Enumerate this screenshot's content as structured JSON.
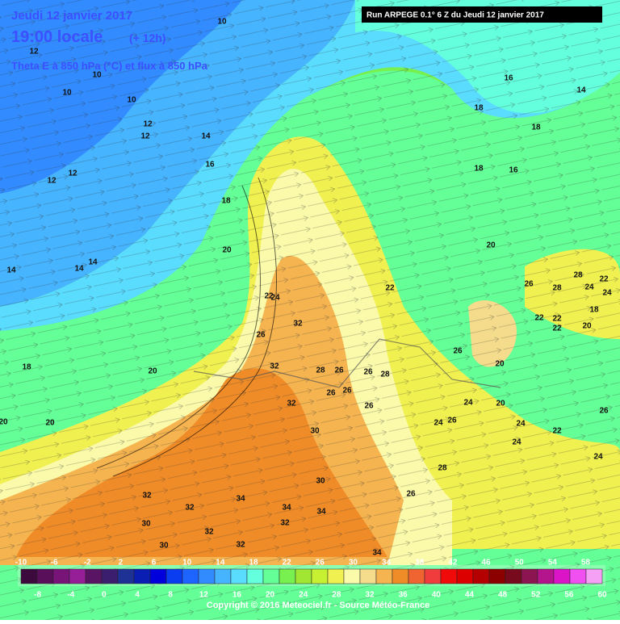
{
  "header": {
    "date": "Jeudi 12 janvier 2017",
    "time": "19:00 locale",
    "offset": "(+ 12h)",
    "field": "Theta E à 850 hPa (°C) et flux à 850 hPa"
  },
  "run": "Run ARPEGE 0.1° 6 Z du Jeudi 12 janvier 2017",
  "copyright": "Copyright © 2016 Meteociel.fr - Source Météo-France",
  "scale": {
    "top_labels": [
      -10,
      -6,
      -2,
      2,
      6,
      10,
      14,
      18,
      22,
      26,
      30,
      34,
      38,
      42,
      46,
      50,
      54,
      58
    ],
    "bottom_labels": [
      -8,
      -4,
      0,
      4,
      8,
      12,
      16,
      20,
      24,
      28,
      32,
      36,
      40,
      44,
      48,
      52,
      56,
      60
    ],
    "colors": [
      "#3c0a3c",
      "#5a0f5a",
      "#781478",
      "#961e96",
      "#5a1464",
      "#3c1e6e",
      "#1e3296",
      "#0a1eb4",
      "#0000dc",
      "#0a3cf0",
      "#1e64ff",
      "#328cff",
      "#46b4ff",
      "#5adcff",
      "#64ffdc",
      "#64ff96",
      "#78f050",
      "#a0e632",
      "#c8f032",
      "#f0f050",
      "#fafaaa",
      "#f5dc8c",
      "#f5b450",
      "#f08c28",
      "#f06432",
      "#f03c3c",
      "#f00a0a",
      "#dc0000",
      "#b40000",
      "#8c0000",
      "#780a1e",
      "#8c1450",
      "#b4148c",
      "#dc14c8",
      "#f050f0",
      "#f5a0f5"
    ]
  },
  "map": {
    "labels": [
      10,
      12,
      10,
      10,
      10,
      12,
      12,
      14,
      16,
      12,
      12,
      18,
      14,
      14,
      14,
      20,
      16,
      14,
      18,
      18,
      18,
      16,
      20,
      22,
      22,
      24,
      32,
      26,
      18,
      20,
      32,
      28,
      26,
      26,
      28,
      32,
      26,
      26,
      26,
      30,
      20,
      20,
      28,
      26,
      30,
      32,
      32,
      34,
      34,
      34,
      32,
      30,
      32,
      30,
      32,
      34,
      26,
      24,
      24,
      26,
      20,
      20,
      24,
      22,
      24,
      26,
      24,
      26,
      28,
      28,
      24,
      24,
      22,
      18,
      22,
      22,
      22,
      20
    ]
  }
}
